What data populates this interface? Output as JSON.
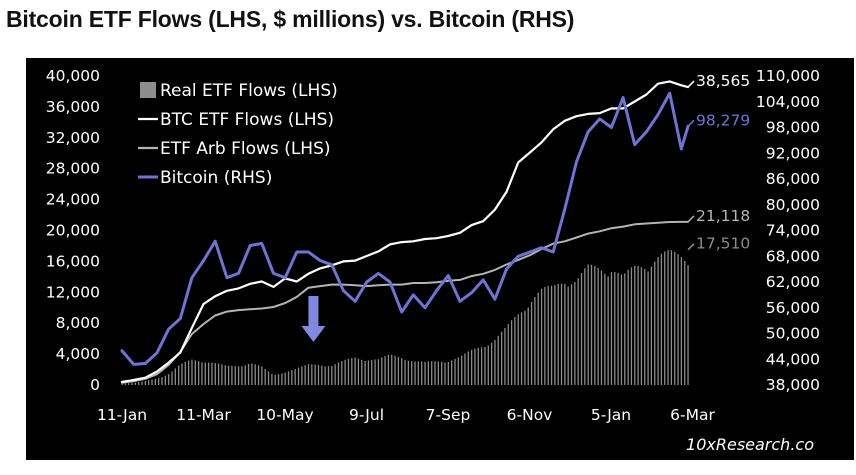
{
  "title": "Bitcoin ETF Flows (LHS, $ millions) vs. Bitcoin (RHS)",
  "source": "10xResearch.co",
  "colors": {
    "background": "#000000",
    "real_etf": "#8c8c8c",
    "btc_etf": "#ffffff",
    "etf_arb": "#b4b4b4",
    "bitcoin": "#6f73d2",
    "arrow": "#8088e0"
  },
  "chart_data": {
    "type": "line",
    "title": "Bitcoin ETF Flows (LHS, $ millions) vs. Bitcoin (RHS)",
    "x_tick_labels": [
      "11-Jan",
      "11-Mar",
      "10-May",
      "9-Jul",
      "7-Sep",
      "6-Nov",
      "5-Jan",
      "6-Mar"
    ],
    "y_left": {
      "ticks": [
        "40,000",
        "36,000",
        "32,000",
        "28,000",
        "24,000",
        "20,000",
        "16,000",
        "12,000",
        "8,000",
        "4,000",
        "0"
      ],
      "range": [
        0,
        40000
      ]
    },
    "y_right": {
      "ticks": [
        "110,000",
        "104,000",
        "98,000",
        "92,000",
        "86,000",
        "80,000",
        "74,000",
        "68,000",
        "62,000",
        "56,000",
        "50,000",
        "44,000",
        "38,000"
      ],
      "range": [
        38000,
        110000
      ]
    },
    "grid": false,
    "legend_position": "top-left",
    "legend": [
      {
        "label": "Real ETF Flows (LHS)",
        "key": "real"
      },
      {
        "label": "BTC ETF Flows (LHS)",
        "key": "btc"
      },
      {
        "label": "ETF Arb Flows (LHS)",
        "key": "arb"
      },
      {
        "label": "Bitcoin (RHS)",
        "key": "bitcoin"
      }
    ],
    "end_labels": {
      "btc": "38,565",
      "bitcoin": "98,279",
      "arb": "21,118",
      "real": "17,510"
    },
    "annotation": {
      "type": "down-arrow",
      "x": 115
    },
    "series": [
      {
        "key": "btc",
        "axis": "left",
        "x": [
          0,
          7,
          14,
          21,
          28,
          35,
          42,
          49,
          56,
          63,
          70,
          77,
          84,
          91,
          98,
          105,
          112,
          119,
          126,
          133,
          140,
          147,
          154,
          161,
          168,
          175,
          182,
          189,
          196,
          203,
          210,
          217,
          224,
          231,
          238,
          245,
          252,
          259,
          266,
          273,
          280,
          287,
          294,
          301,
          308,
          315,
          322,
          329,
          336,
          340
        ],
        "y": [
          400,
          650,
          950,
          1750,
          2900,
          4200,
          7400,
          10500,
          11500,
          12200,
          12500,
          13100,
          13400,
          12700,
          13800,
          13400,
          14400,
          15100,
          15500,
          16000,
          16100,
          16700,
          17300,
          18200,
          18500,
          18600,
          18900,
          19000,
          19300,
          19700,
          20700,
          21200,
          22700,
          25000,
          28800,
          30100,
          31400,
          33100,
          34200,
          34800,
          35100,
          35200,
          35800,
          35800,
          36700,
          37600,
          39000,
          39300,
          38800,
          38565
        ]
      },
      {
        "key": "arb",
        "axis": "left",
        "x": [
          0,
          7,
          14,
          21,
          28,
          35,
          42,
          49,
          56,
          63,
          70,
          77,
          84,
          91,
          98,
          105,
          112,
          119,
          126,
          133,
          140,
          147,
          154,
          161,
          168,
          175,
          182,
          189,
          196,
          203,
          210,
          217,
          224,
          231,
          238,
          245,
          252,
          259,
          266,
          273,
          280,
          287,
          294,
          301,
          308,
          315,
          322,
          329,
          336,
          340
        ],
        "y": [
          300,
          500,
          800,
          1400,
          2600,
          4300,
          6600,
          7900,
          9000,
          9500,
          9700,
          9800,
          9900,
          10100,
          10600,
          11400,
          12600,
          12800,
          13000,
          13000,
          12900,
          12800,
          12900,
          13000,
          13000,
          13200,
          13200,
          13300,
          13500,
          13600,
          14100,
          14400,
          14900,
          15600,
          16200,
          16800,
          17600,
          18300,
          18600,
          19100,
          19600,
          19900,
          20300,
          20500,
          20800,
          20900,
          21000,
          21100,
          21118,
          21118
        ]
      },
      {
        "key": "real",
        "axis": "left",
        "x": [
          0,
          7,
          14,
          21,
          28,
          35,
          42,
          49,
          56,
          63,
          70,
          77,
          84,
          91,
          98,
          105,
          112,
          119,
          126,
          133,
          140,
          147,
          154,
          161,
          168,
          175,
          182,
          189,
          196,
          203,
          210,
          217,
          224,
          231,
          238,
          245,
          252,
          259,
          266,
          273,
          280,
          287,
          294,
          301,
          308,
          315,
          322,
          329,
          336,
          340
        ],
        "y": [
          200,
          300,
          500,
          900,
          1500,
          2700,
          3400,
          3300,
          2900,
          2500,
          2600,
          3000,
          2400,
          1300,
          1800,
          2200,
          2700,
          2800,
          2600,
          3200,
          3700,
          3500,
          3400,
          4000,
          3800,
          3200,
          3000,
          3200,
          3300,
          3700,
          4600,
          5400,
          6100,
          7600,
          9600,
          11500,
          12600,
          13000,
          14500,
          14000,
          15600,
          15800,
          16000,
          14300,
          15700,
          16600,
          17200,
          17500,
          17510,
          17510
        ]
      },
      {
        "key": "bitcoin",
        "axis": "right",
        "x": [
          0,
          7,
          14,
          21,
          28,
          35,
          42,
          49,
          56,
          63,
          70,
          77,
          84,
          91,
          98,
          105,
          112,
          119,
          126,
          133,
          140,
          147,
          154,
          161,
          168,
          175,
          182,
          189,
          196,
          203,
          210,
          217,
          224,
          231,
          238,
          245,
          252,
          259,
          266,
          273,
          280,
          287,
          294,
          301,
          308,
          315,
          322,
          329,
          336,
          340
        ],
        "y": [
          46000,
          42800,
          43000,
          45500,
          51000,
          53500,
          63000,
          67000,
          71500,
          63000,
          64000,
          70500,
          71000,
          64000,
          63000,
          69000,
          69000,
          67000,
          66000,
          60000,
          57500,
          62000,
          64000,
          62000,
          55000,
          59000,
          56000,
          60000,
          63500,
          57500,
          59500,
          62500,
          58000,
          65000,
          68000,
          69000,
          70000,
          69000,
          79000,
          90000,
          97000,
          100000,
          98000,
          105000,
          94000,
          97000,
          101000,
          106000,
          93000,
          98279
        ]
      }
    ]
  }
}
